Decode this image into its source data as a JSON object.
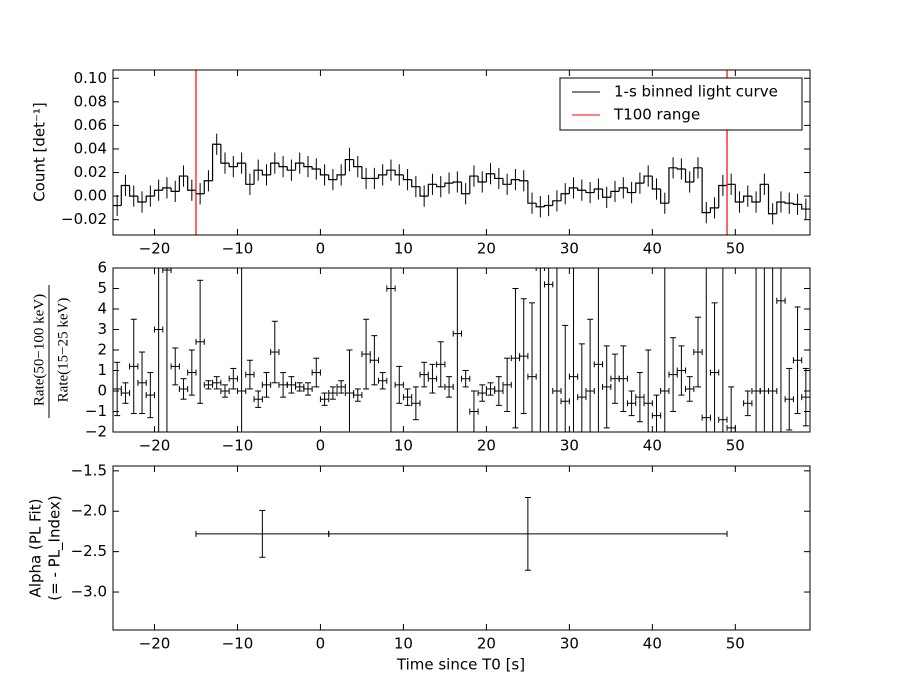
{
  "chart_data": [
    {
      "type": "step",
      "ylabel": "Count [det⁻¹]",
      "xlim": [
        -25,
        59
      ],
      "ylim": [
        -0.033,
        0.107
      ],
      "xticks": [
        {
          "value": -20,
          "label": "−20"
        },
        {
          "value": -10,
          "label": "−10"
        },
        0,
        10,
        20,
        30,
        40,
        50
      ],
      "yticks": [
        {
          "value": -0.02,
          "label": "−0.02"
        },
        {
          "value": 0,
          "label": "0.00"
        },
        {
          "value": 0.02,
          "label": "0.02"
        },
        {
          "value": 0.04,
          "label": "0.04"
        },
        {
          "value": 0.06,
          "label": "0.06"
        },
        {
          "value": 0.08,
          "label": "0.08"
        },
        {
          "value": 0.1,
          "label": "0.10"
        }
      ],
      "legend": "upper right",
      "series": [
        {
          "name": "1-s binned light curve",
          "color": "#000000",
          "x": [
            -24.5,
            -23.5,
            -22.5,
            -21.5,
            -20.5,
            -19.5,
            -18.5,
            -17.5,
            -16.5,
            -15.5,
            -14.5,
            -13.5,
            -12.5,
            -11.5,
            -10.5,
            -9.5,
            -8.5,
            -7.5,
            -6.5,
            -5.5,
            -4.5,
            -3.5,
            -2.5,
            -1.5,
            -0.5,
            0.5,
            1.5,
            2.5,
            3.5,
            4.5,
            5.5,
            6.5,
            7.5,
            8.5,
            9.5,
            10.5,
            11.5,
            12.5,
            13.5,
            14.5,
            15.5,
            16.5,
            17.5,
            18.5,
            19.5,
            20.5,
            21.5,
            22.5,
            23.5,
            24.5,
            25.5,
            26.5,
            27.5,
            28.5,
            29.5,
            30.5,
            31.5,
            32.5,
            33.5,
            34.5,
            35.5,
            36.5,
            37.5,
            38.5,
            39.5,
            40.5,
            41.5,
            42.5,
            43.5,
            44.5,
            45.5,
            46.5,
            47.5,
            48.5,
            49.5,
            50.5,
            51.5,
            52.5,
            53.5,
            54.5,
            55.5,
            56.5,
            57.5,
            58.5
          ],
          "values": [
            -0.008,
            0.009,
            0.0,
            -0.005,
            0.0,
            0.005,
            0.007,
            0.004,
            0.017,
            0.005,
            0.002,
            0.013,
            0.044,
            0.028,
            0.025,
            0.028,
            0.01,
            0.022,
            0.018,
            0.028,
            0.025,
            0.022,
            0.028,
            0.025,
            0.023,
            0.018,
            0.014,
            0.018,
            0.031,
            0.025,
            0.015,
            0.015,
            0.018,
            0.022,
            0.018,
            0.014,
            0.008,
            0.0,
            0.01,
            0.008,
            0.011,
            0.012,
            0.002,
            0.017,
            0.012,
            0.019,
            0.015,
            0.01,
            0.014,
            0.013,
            -0.006,
            -0.009,
            -0.008,
            -0.004,
            0.002,
            0.007,
            0.005,
            0.003,
            0.006,
            -0.001,
            0.004,
            0.007,
            0.003,
            0.011,
            0.017,
            0.006,
            -0.006,
            0.024,
            0.023,
            0.012,
            0.024,
            -0.014,
            -0.01,
            0.009,
            0.01,
            -0.005,
            0.0,
            -0.005,
            0.01,
            -0.015,
            -0.005,
            -0.006,
            -0.007,
            -0.011
          ],
          "errors": [
            0.009,
            0.009,
            0.009,
            0.009,
            0.009,
            0.009,
            0.009,
            0.009,
            0.009,
            0.009,
            0.009,
            0.009,
            0.009,
            0.009,
            0.009,
            0.009,
            0.009,
            0.009,
            0.009,
            0.009,
            0.009,
            0.009,
            0.009,
            0.009,
            0.009,
            0.009,
            0.009,
            0.009,
            0.01,
            0.009,
            0.009,
            0.009,
            0.009,
            0.009,
            0.009,
            0.009,
            0.009,
            0.009,
            0.009,
            0.009,
            0.009,
            0.009,
            0.009,
            0.009,
            0.009,
            0.009,
            0.009,
            0.009,
            0.009,
            0.009,
            0.009,
            0.009,
            0.009,
            0.009,
            0.009,
            0.009,
            0.009,
            0.009,
            0.009,
            0.009,
            0.009,
            0.009,
            0.009,
            0.009,
            0.009,
            0.009,
            0.009,
            0.009,
            0.009,
            0.009,
            0.009,
            0.009,
            0.009,
            0.009,
            0.009,
            0.009,
            0.009,
            0.009,
            0.009,
            0.009,
            0.009,
            0.009,
            0.009,
            0.009
          ]
        }
      ],
      "vlines": {
        "name": "T100 range",
        "color": "#ff0000",
        "x": [
          -15,
          49
        ]
      }
    },
    {
      "type": "errorbar",
      "ylabel_numerator": "Rate(50−100 keV)",
      "ylabel_denominator": "Rate(15−25 keV)",
      "xlim": [
        -25,
        59
      ],
      "ylim": [
        -2,
        6
      ],
      "xticks": [
        {
          "value": -20,
          "label": "−20"
        },
        {
          "value": -10,
          "label": "−10"
        },
        0,
        10,
        20,
        30,
        40,
        50
      ],
      "yticks": [
        {
          "value": -2,
          "label": "−2"
        },
        {
          "value": -1,
          "label": "−1"
        },
        0,
        1,
        2,
        3,
        4,
        5,
        6
      ],
      "series": [
        {
          "color": "#000000",
          "xerr": 0.5,
          "x": [
            -24.5,
            -23.5,
            -22.5,
            -21.5,
            -20.5,
            -19.5,
            -18.5,
            -17.5,
            -16.5,
            -15.5,
            -14.5,
            -13.5,
            -12.5,
            -11.5,
            -10.5,
            -9.5,
            -8.5,
            -7.5,
            -6.5,
            -5.5,
            -4.5,
            -3.5,
            -2.5,
            -1.5,
            -0.5,
            0.5,
            1.5,
            2.5,
            3.5,
            4.5,
            5.5,
            6.5,
            7.5,
            8.5,
            9.5,
            10.5,
            11.5,
            12.5,
            13.5,
            14.5,
            15.5,
            16.5,
            17.5,
            18.5,
            19.5,
            20.5,
            21.5,
            22.5,
            23.5,
            24.5,
            25.5,
            26.5,
            27.5,
            28.5,
            29.5,
            30.5,
            31.5,
            32.5,
            33.5,
            34.5,
            35.5,
            36.5,
            37.5,
            38.5,
            39.5,
            40.5,
            41.5,
            42.5,
            43.5,
            44.5,
            45.5,
            46.5,
            47.5,
            48.5,
            49.5,
            51.5,
            52.5,
            53.5,
            54.5,
            55.5,
            56.5,
            57.5,
            58.5
          ],
          "values": [
            0.1,
            -0.1,
            1.2,
            0.4,
            -0.2,
            3,
            5.9,
            1.2,
            0.1,
            0.9,
            2.4,
            0.3,
            0.4,
            0.0,
            0.6,
            0,
            0.8,
            -0.4,
            0.3,
            1.9,
            0.3,
            0.3,
            0.2,
            0.1,
            0.9,
            -0.4,
            -0.1,
            0.2,
            -0.1,
            -0.2,
            1.8,
            1.5,
            0.5,
            5,
            0.3,
            -0.3,
            -0.6,
            0.8,
            0.6,
            1.3,
            0.2,
            2.8,
            0.6,
            -1.0,
            -0.1,
            0.1,
            0.0,
            0.3,
            1.6,
            1.7,
            0.7,
            6,
            5.2,
            0,
            -0.5,
            0.7,
            -0.3,
            0,
            1.3,
            0.2,
            0.6,
            0.6,
            -0.6,
            -0.3,
            -0.6,
            -1.2,
            0,
            0.8,
            1.0,
            0.1,
            1.9,
            -1.3,
            0.9,
            -1.4,
            -1.8,
            -0.6,
            0,
            0,
            0,
            4.4,
            -0.4,
            1.5,
            -0.3
          ],
          "errors": [
            1.3,
            0.5,
            2.3,
            1.5,
            1.1,
            10,
            10,
            0.9,
            0.5,
            1.1,
            3,
            0.2,
            0.3,
            0.3,
            0.5,
            10,
            0.7,
            0.4,
            0.6,
            1.5,
            0.6,
            0.4,
            0.2,
            0.3,
            0.7,
            0.3,
            0.3,
            0.3,
            2.1,
            0.3,
            1.7,
            1.2,
            0.4,
            10,
            0.9,
            0.4,
            0.8,
            0.6,
            0.7,
            1.1,
            0.5,
            10,
            0.4,
            1.0,
            0.4,
            0.3,
            0.7,
            1.3,
            3.4,
            2.8,
            3.6,
            10,
            10,
            10,
            3.7,
            10,
            2.6,
            3.5,
            10,
            2,
            1.2,
            1.6,
            0.6,
            1.2,
            2.6,
            1.0,
            10,
            1.8,
            1.2,
            0.6,
            1.7,
            10,
            3.4,
            10,
            2,
            0.6,
            10,
            10,
            10,
            10,
            1.5,
            2.6,
            1.4
          ]
        }
      ]
    },
    {
      "type": "errorbar",
      "ylabel": "Alpha (PL Fit)",
      "ylabel2": "(= - PL_Index)",
      "xlabel": "Time since T0 [s]",
      "xlim": [
        -25,
        59
      ],
      "ylim": [
        -3.47,
        -1.44
      ],
      "xticks": [
        {
          "value": -20,
          "label": "−20"
        },
        {
          "value": -10,
          "label": "−10"
        },
        0,
        10,
        20,
        30,
        40,
        50
      ],
      "yticks": [
        {
          "value": -3.0,
          "label": "−3.0"
        },
        {
          "value": -2.5,
          "label": "−2.5"
        },
        {
          "value": -2.0,
          "label": "−2.0"
        },
        {
          "value": -1.5,
          "label": "−1.5"
        }
      ],
      "series": [
        {
          "color": "#000000",
          "x": [
            -7,
            25
          ],
          "xerr": [
            8,
            24
          ],
          "values": [
            -2.28,
            -2.28
          ],
          "errors": [
            0.29,
            0.45
          ]
        }
      ]
    }
  ]
}
